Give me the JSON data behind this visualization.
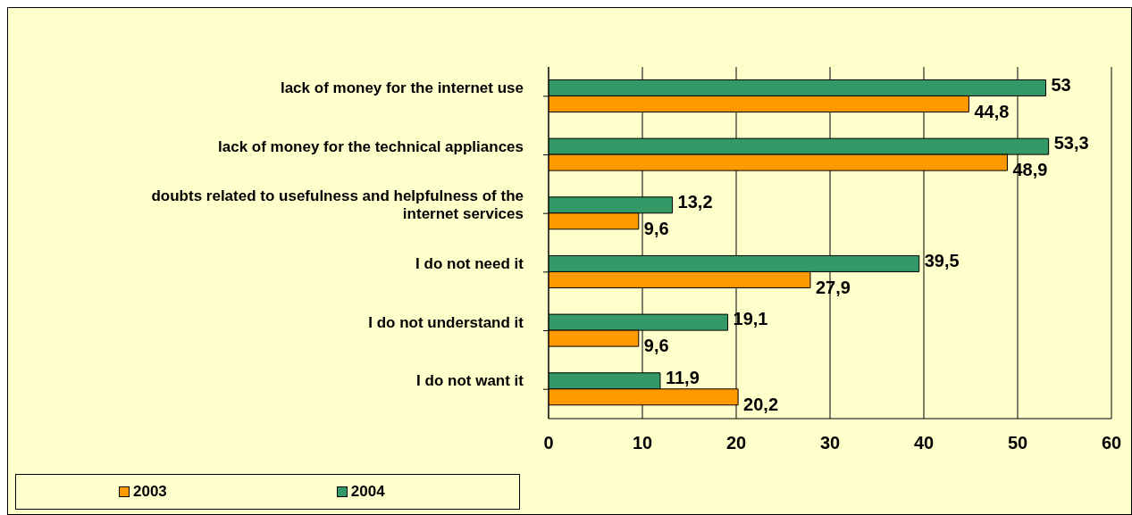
{
  "chart_data": {
    "type": "bar",
    "orientation": "horizontal",
    "categories": [
      "lack of money for the internet use",
      "lack of money for the technical appliances",
      "doubts related to usefulness and helpfulness of the internet services",
      "I do not need it",
      "I do not understand it",
      "I do not want it"
    ],
    "series": [
      {
        "name": "2003",
        "color": "#ff9900",
        "values": [
          44.8,
          48.9,
          9.6,
          27.9,
          9.6,
          20.2
        ],
        "value_labels": [
          "44,8",
          "48,9",
          "9,6",
          "27,9",
          "9,6",
          "20,2"
        ]
      },
      {
        "name": "2004",
        "color": "#339966",
        "values": [
          53,
          53.3,
          13.2,
          39.5,
          19.1,
          11.9
        ],
        "value_labels": [
          "53",
          "53,3",
          "13,2",
          "39,5",
          "19,1",
          "11,9"
        ]
      }
    ],
    "xlim": [
      0,
      60
    ],
    "xticks": [
      0,
      10,
      20,
      30,
      40,
      50,
      60
    ],
    "grid": "x",
    "legend": "bottom left"
  }
}
